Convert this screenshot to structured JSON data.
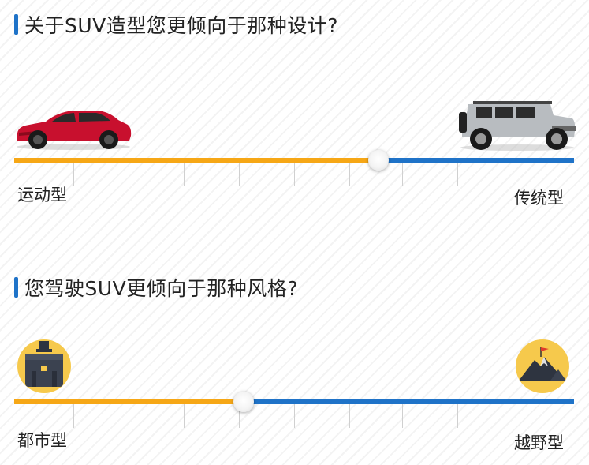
{
  "q1": {
    "title": "关于SUV造型您更倾向于那种设计?",
    "left_label": "运动型",
    "right_label": "传统型",
    "slider_value": 0.65,
    "left_icon": "red-sports-suv-icon",
    "right_icon": "silver-offroad-jeep-icon"
  },
  "q2": {
    "title": "您驾驶SUV更倾向于那种风格?",
    "left_label": "都市型",
    "right_label": "越野型",
    "slider_value": 0.41,
    "left_icon": "briefcase-icon",
    "right_icon": "mountain-flag-icon"
  },
  "colors": {
    "accent_orange": "#f6a716",
    "accent_blue": "#1f73c8",
    "badge_yellow": "#f6c94c"
  }
}
